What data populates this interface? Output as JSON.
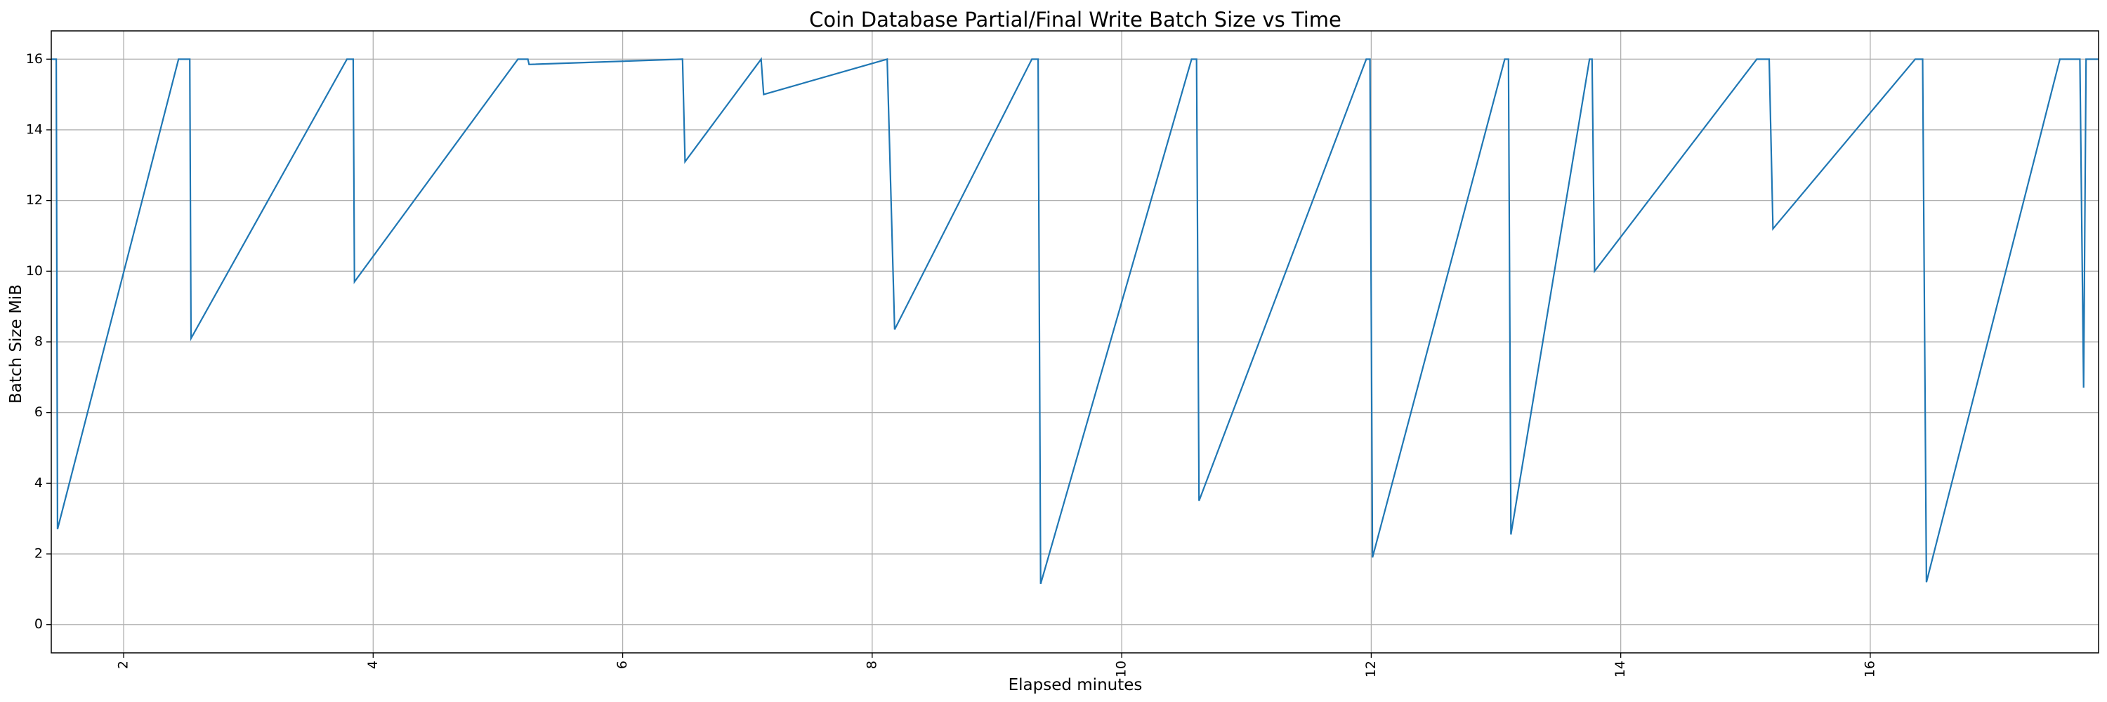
{
  "chart_data": {
    "type": "line",
    "title": "Coin Database Partial/Final Write Batch Size vs Time",
    "xlabel": "Elapsed minutes",
    "ylabel": "Batch Size MiB",
    "xlim": [
      1.42,
      17.83
    ],
    "ylim": [
      -0.8,
      16.8
    ],
    "xticks": [
      2,
      4,
      6,
      8,
      10,
      12,
      14,
      16
    ],
    "yticks": [
      0,
      2,
      4,
      6,
      8,
      10,
      12,
      14,
      16
    ],
    "xtick_rotation": "vertical",
    "grid": true,
    "legend": "none",
    "color": "#1f77b4",
    "series": [
      {
        "x": [
          1.42,
          1.46,
          1.47,
          2.44,
          2.53,
          2.54,
          3.79,
          3.84,
          3.85,
          5.16,
          5.24,
          5.25,
          6.48,
          6.5,
          7.11,
          7.13,
          8.07,
          8.12,
          8.18,
          9.28,
          9.33,
          9.35,
          10.56,
          10.6,
          10.62,
          11.96,
          11.99,
          12.01,
          13.07,
          13.1,
          13.12,
          13.75,
          13.77,
          13.79,
          15.09,
          15.19,
          15.22,
          16.36,
          16.42,
          16.45,
          17.52,
          17.67,
          17.68,
          17.71,
          17.73,
          17.8,
          17.83
        ],
        "y": [
          16.0,
          16.0,
          2.7,
          16.0,
          16.0,
          8.1,
          16.0,
          16.0,
          9.7,
          16.0,
          16.0,
          15.85,
          16.0,
          13.1,
          16.0,
          15.0,
          15.95,
          16.0,
          8.35,
          16.0,
          16.0,
          1.15,
          16.0,
          16.0,
          3.5,
          16.0,
          16.0,
          1.9,
          16.0,
          16.0,
          2.55,
          16.0,
          16.0,
          10.0,
          16.0,
          16.0,
          11.2,
          16.0,
          16.0,
          1.2,
          16.0,
          16.0,
          16.0,
          6.7,
          16.0,
          16.0,
          16.0
        ]
      }
    ]
  }
}
